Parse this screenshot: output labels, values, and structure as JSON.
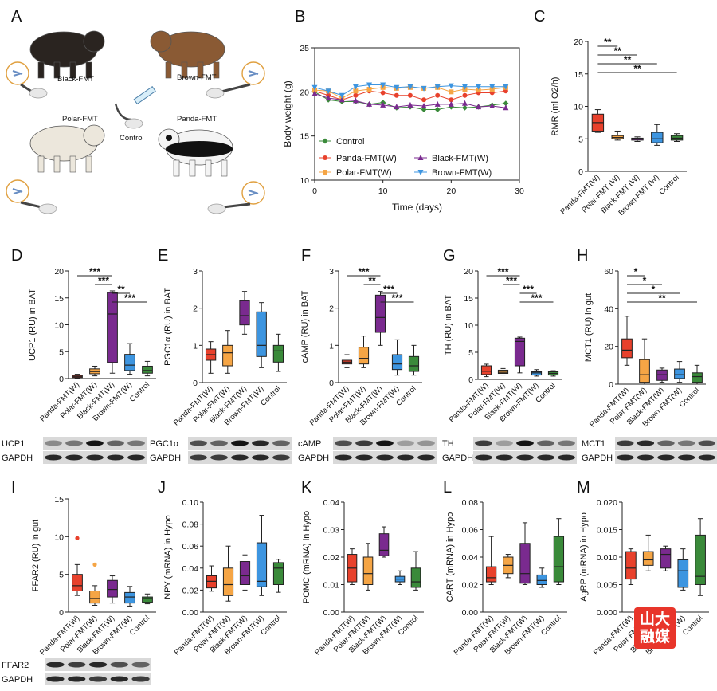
{
  "panel_letters": [
    "A",
    "B",
    "C",
    "D",
    "E",
    "F",
    "G",
    "H",
    "I",
    "J",
    "K",
    "L",
    "M"
  ],
  "panel_a": {
    "labels": [
      "Black-FMT",
      "Brown-FMT",
      "Polar-FMT",
      "Panda-FMT",
      "Control"
    ],
    "animals": [
      "black-bear",
      "brown-bear",
      "polar-bear",
      "panda"
    ]
  },
  "colors": {
    "panda": "#e8412c",
    "polar": "#f5a545",
    "black": "#7a2a8f",
    "brown": "#3d95e0",
    "control": "#3a8a3a"
  },
  "categories": [
    "Panda-FMT(W)",
    "Polar-FMT (W)",
    "Black-FMT (W)",
    "Brown-FMT (W)",
    "Control"
  ],
  "categories_alt": [
    "Panda-FMT(W)",
    "Polar-FMT(W)",
    "Black-FMT(W)",
    "Brown-FMT(W)",
    "Control"
  ],
  "blots": {
    "D": [
      "UCP1",
      "GAPDH"
    ],
    "E": [
      "PGC1α",
      "GAPDH"
    ],
    "F": [
      "cAMP",
      "GAPDH"
    ],
    "G": [
      "TH",
      "GAPDH"
    ],
    "H": [
      "MCT1",
      "GAPDH"
    ],
    "I": [
      "FFAR2",
      "GAPDH"
    ]
  },
  "badge_text": "山大融媒",
  "chart_data": [
    {
      "panel": "B",
      "type": "line",
      "xlabel": "Time (days)",
      "ylabel": "Body weight (g)",
      "xlim": [
        0,
        30
      ],
      "ylim": [
        10,
        25
      ],
      "xticks": [
        "0",
        "10",
        "20",
        "30"
      ],
      "yticks": [
        "10",
        "15",
        "20",
        "25"
      ],
      "x": [
        0,
        2,
        4,
        6,
        8,
        10,
        12,
        14,
        16,
        18,
        20,
        22,
        24,
        26,
        28
      ],
      "legend_position": "bottom-left",
      "series": [
        {
          "name": "Control",
          "color": "#3a8a3a",
          "marker": "diamond",
          "values": [
            20,
            19.1,
            18.9,
            18.9,
            18.6,
            18.8,
            18.2,
            18.3,
            18,
            18,
            18.3,
            18.2,
            18.3,
            18.5,
            18.7
          ]
        },
        {
          "name": "Panda-FMT(W)",
          "color": "#e8412c",
          "marker": "circle",
          "values": [
            20.1,
            19.6,
            19.1,
            19.6,
            20.1,
            19.9,
            19.6,
            19.6,
            19.1,
            19.6,
            19.1,
            19.6,
            19.9,
            19.9,
            20.1
          ]
        },
        {
          "name": "Polar-FMT(W)",
          "color": "#f5a545",
          "marker": "square",
          "values": [
            20.2,
            20.1,
            19.3,
            20.1,
            20.3,
            20.5,
            20.4,
            20.5,
            20.4,
            20.5,
            20,
            20.3,
            20.2,
            20.3,
            20.5
          ]
        },
        {
          "name": "Black-FMT(W)",
          "color": "#7a2a8f",
          "marker": "triangle-up",
          "values": [
            19.8,
            19.3,
            19.1,
            19,
            18.6,
            18.5,
            18.3,
            18.5,
            18.4,
            18.6,
            18.6,
            18.7,
            18.3,
            18.4,
            18.2
          ]
        },
        {
          "name": "Brown-FMT(W)",
          "color": "#3d95e0",
          "marker": "triangle-down",
          "values": [
            20.5,
            20.1,
            19.6,
            20.6,
            20.8,
            20.8,
            20.5,
            20.6,
            20.4,
            20.6,
            20.7,
            20.6,
            20.6,
            20.6,
            20.6
          ]
        }
      ]
    },
    {
      "panel": "C",
      "type": "box",
      "ylabel": "RMR (ml O2/h)",
      "ylim": [
        0,
        20
      ],
      "yticks": [
        "0",
        "5",
        "10",
        "15",
        "20"
      ],
      "categories": [
        "Panda-FMT(W)",
        "Polar-FMT (W)",
        "Black-FMT (W)",
        "Brown-FMT (W)",
        "Control"
      ],
      "boxes": [
        [
          6,
          6.2,
          7.5,
          8.8,
          9.5
        ],
        [
          4.8,
          5,
          5.2,
          5.5,
          6.2
        ],
        [
          4.6,
          4.8,
          5,
          5.1,
          5.3
        ],
        [
          4,
          4.4,
          5,
          6,
          7.2
        ],
        [
          4.6,
          4.8,
          5.1,
          5.5,
          5.8
        ]
      ],
      "outliers": [
        [],
        [],
        [],
        [],
        []
      ],
      "significance": [
        {
          "from": 0,
          "to": 1,
          "label": "**"
        },
        {
          "from": 0,
          "to": 2,
          "label": "**"
        },
        {
          "from": 0,
          "to": 3,
          "label": "**"
        },
        {
          "from": 0,
          "to": 4,
          "label": "**"
        }
      ]
    },
    {
      "panel": "D",
      "type": "box",
      "ylabel": "UCP1 (RU) in BAT",
      "ylim": [
        0,
        20
      ],
      "yticks": [
        "0",
        "5",
        "10",
        "15",
        "20"
      ],
      "categories": [
        "Panda-FMT(W)",
        "Polar-FMT(W)",
        "Black-FMT(W)",
        "Brown-FMT(W)",
        "Control"
      ],
      "boxes": [
        [
          0.1,
          0.2,
          0.4,
          0.6,
          0.8
        ],
        [
          0.5,
          0.9,
          1.3,
          1.8,
          2.3
        ],
        [
          1,
          3,
          12,
          16,
          16.3
        ],
        [
          0.8,
          1.5,
          2.5,
          4.5,
          6.5
        ],
        [
          0.5,
          1,
          1.5,
          2.3,
          3.2
        ]
      ],
      "outliers": [
        [],
        [],
        [],
        [],
        []
      ],
      "significance": [
        {
          "from": 0,
          "to": 2,
          "label": "***"
        },
        {
          "from": 1,
          "to": 2,
          "label": "***"
        },
        {
          "from": 2,
          "to": 3,
          "label": "**"
        },
        {
          "from": 2,
          "to": 4,
          "label": "***"
        }
      ]
    },
    {
      "panel": "E",
      "type": "box",
      "ylabel": "PGC1α (RU) in BAT",
      "ylim": [
        0,
        3
      ],
      "yticks": [
        "0",
        "1",
        "2",
        "3"
      ],
      "categories": [
        "Panda-FMT(W)",
        "Polar-FMT(W)",
        "Black-FMT(W)",
        "Brown-FMT(W)",
        "Control"
      ],
      "boxes": [
        [
          0.25,
          0.6,
          0.75,
          0.9,
          1.1
        ],
        [
          0.25,
          0.45,
          0.8,
          1,
          1.4
        ],
        [
          1.3,
          1.55,
          1.8,
          2.2,
          2.45
        ],
        [
          0.4,
          0.7,
          1,
          1.9,
          2.15
        ],
        [
          0.3,
          0.55,
          0.85,
          1,
          1.3
        ]
      ],
      "outliers": [
        [],
        [],
        [],
        [],
        []
      ],
      "significance": []
    },
    {
      "panel": "F",
      "type": "box",
      "ylabel": "cAMP (RU) in BAT",
      "ylim": [
        0,
        3
      ],
      "yticks": [
        "0",
        "1",
        "2",
        "3"
      ],
      "categories": [
        "Panda-FMT(W)",
        "Polar-FMT(W)",
        "Black-FMT(W)",
        "Brown-FMT(W)",
        "Control"
      ],
      "boxes": [
        [
          0.4,
          0.5,
          0.55,
          0.6,
          0.75
        ],
        [
          0.4,
          0.5,
          0.65,
          0.95,
          1.25
        ],
        [
          1,
          1.35,
          1.75,
          2.35,
          2.45
        ],
        [
          0.2,
          0.35,
          0.5,
          0.75,
          1.15
        ],
        [
          0.2,
          0.3,
          0.45,
          0.7,
          1
        ]
      ],
      "outliers": [
        [],
        [],
        [],
        [],
        []
      ],
      "significance": [
        {
          "from": 0,
          "to": 2,
          "label": "***"
        },
        {
          "from": 1,
          "to": 2,
          "label": "**"
        },
        {
          "from": 2,
          "to": 3,
          "label": "***"
        },
        {
          "from": 2,
          "to": 4,
          "label": "***"
        }
      ]
    },
    {
      "panel": "G",
      "type": "box",
      "ylabel": "TH (RU) in BAT",
      "ylim": [
        0,
        20
      ],
      "yticks": [
        "0",
        "5",
        "10",
        "15",
        "20"
      ],
      "categories": [
        "Panda-FMT(W)",
        "Polar-FMT(W)",
        "Black-FMT(W)",
        "Brown-FMT(W)",
        "Control"
      ],
      "boxes": [
        [
          0.5,
          0.9,
          1.5,
          2.5,
          2.8
        ],
        [
          0.8,
          1.1,
          1.3,
          1.7,
          2
        ],
        [
          1.2,
          2.5,
          7,
          7.6,
          7.8
        ],
        [
          0.6,
          0.8,
          1.2,
          1.4,
          1.8
        ],
        [
          0.6,
          0.8,
          1.1,
          1.4,
          1.6
        ]
      ],
      "outliers": [
        [],
        [],
        [],
        [],
        []
      ],
      "significance": [
        {
          "from": 0,
          "to": 2,
          "label": "***"
        },
        {
          "from": 1,
          "to": 2,
          "label": "***"
        },
        {
          "from": 2,
          "to": 3,
          "label": "***"
        },
        {
          "from": 2,
          "to": 4,
          "label": "***"
        }
      ]
    },
    {
      "panel": "H",
      "type": "box",
      "ylabel": "MCT1 (RU) in gut",
      "ylim": [
        0,
        60
      ],
      "yticks": [
        "0",
        "20",
        "40",
        "60"
      ],
      "categories": [
        "Panda-FMT(W)",
        "Polar-FMT(W)",
        "Black-FMT(W)",
        "Brown-FMT(W)",
        "Control"
      ],
      "boxes": [
        [
          10,
          14,
          18,
          24,
          36
        ],
        [
          0,
          1,
          5,
          13,
          24
        ],
        [
          1,
          2,
          5,
          7.5,
          8.5
        ],
        [
          1,
          3,
          5,
          8,
          12
        ],
        [
          0,
          1,
          4,
          6,
          10
        ]
      ],
      "outliers": [
        [],
        [],
        [],
        [],
        []
      ],
      "significance": [
        {
          "from": 0,
          "to": 1,
          "label": "*"
        },
        {
          "from": 0,
          "to": 2,
          "label": "*"
        },
        {
          "from": 0,
          "to": 3,
          "label": "*"
        },
        {
          "from": 0,
          "to": 4,
          "label": "**"
        }
      ]
    },
    {
      "panel": "I",
      "type": "box",
      "ylabel": "FFAR2 (RU) in gut",
      "ylim": [
        0,
        15
      ],
      "yticks": [
        "0",
        "5",
        "10",
        "15"
      ],
      "categories": [
        "Panda-FMT(W)",
        "Polar-FMT(W)",
        "Black-FMT(W)",
        "Brown-FMT(W)",
        "Control"
      ],
      "boxes": [
        [
          2.2,
          2.8,
          3.5,
          5,
          6.3
        ],
        [
          0.9,
          1.2,
          1.8,
          2.8,
          3.5
        ],
        [
          1.2,
          2,
          3,
          4.2,
          4.8
        ],
        [
          0.8,
          1.2,
          2,
          2.6,
          3.4
        ],
        [
          1.1,
          1.3,
          1.8,
          2,
          2.4
        ]
      ],
      "outliers": [
        [
          9.8
        ],
        [
          6.3
        ],
        [],
        [],
        []
      ],
      "significance": []
    },
    {
      "panel": "J",
      "type": "box",
      "ylabel": "NPY (mRNA) in Hypo",
      "ylim": [
        0,
        0.1
      ],
      "yticks": [
        "0.00",
        "0.02",
        "0.04",
        "0.06",
        "0.08",
        "0.10"
      ],
      "categories": [
        "Panda-FMT(W)",
        "Polar-FMT(W)",
        "Black-FMT(W)",
        "Brown-FMT(W)",
        "Control"
      ],
      "boxes": [
        [
          0.019,
          0.022,
          0.028,
          0.033,
          0.042
        ],
        [
          0.01,
          0.015,
          0.025,
          0.04,
          0.06
        ],
        [
          0.02,
          0.025,
          0.033,
          0.046,
          0.052
        ],
        [
          0.015,
          0.023,
          0.028,
          0.063,
          0.088
        ],
        [
          0.018,
          0.025,
          0.04,
          0.045,
          0.048
        ]
      ],
      "outliers": [
        [],
        [],
        [],
        [],
        []
      ],
      "significance": []
    },
    {
      "panel": "K",
      "type": "box",
      "ylabel": "POMC (mRNA) in Hypo",
      "ylim": [
        0,
        0.04
      ],
      "yticks": [
        "0.00",
        "0.01",
        "0.02",
        "0.03",
        "0.04"
      ],
      "categories": [
        "Panda-FMT(W)",
        "Polar-FMT(W)",
        "Black-FMT(W)",
        "Brown-FMT(W)",
        "Control"
      ],
      "boxes": [
        [
          0.01,
          0.011,
          0.016,
          0.021,
          0.023
        ],
        [
          0.008,
          0.01,
          0.014,
          0.02,
          0.025
        ],
        [
          0.02,
          0.0205,
          0.0225,
          0.0285,
          0.031
        ],
        [
          0.01,
          0.011,
          0.012,
          0.013,
          0.015
        ],
        [
          0.008,
          0.009,
          0.011,
          0.016,
          0.022
        ]
      ],
      "outliers": [
        [],
        [],
        [],
        [],
        []
      ],
      "significance": []
    },
    {
      "panel": "L",
      "type": "box",
      "ylabel": "CART (mRNA) in Hypo",
      "ylim": [
        0,
        0.08
      ],
      "yticks": [
        "0.00",
        "0.02",
        "0.04",
        "0.06",
        "0.08"
      ],
      "categories": [
        "Panda-FMT(W)",
        "Polar-FMT(W)",
        "Black-FMT(W)",
        "Brown-FMT(W)",
        "Control"
      ],
      "boxes": [
        [
          0.02,
          0.022,
          0.025,
          0.033,
          0.055
        ],
        [
          0.025,
          0.028,
          0.034,
          0.04,
          0.042
        ],
        [
          0.02,
          0.021,
          0.028,
          0.05,
          0.065
        ],
        [
          0.018,
          0.02,
          0.023,
          0.027,
          0.032
        ],
        [
          0.02,
          0.022,
          0.033,
          0.055,
          0.068
        ]
      ],
      "outliers": [
        [],
        [],
        [],
        [],
        []
      ],
      "significance": []
    },
    {
      "panel": "M",
      "type": "box",
      "ylabel": "AgRP (mRNA) in Hypo",
      "ylim": [
        0,
        0.02
      ],
      "yticks": [
        "0.000",
        "0.005",
        "0.010",
        "0.015",
        "0.020"
      ],
      "categories": [
        "Panda-FMT(W)",
        "Polar-FMT(W)",
        "Black-FMT(W)",
        "Brown-FMT(W)",
        "Control"
      ],
      "boxes": [
        [
          0.005,
          0.006,
          0.008,
          0.011,
          0.0115
        ],
        [
          0.0075,
          0.0085,
          0.0095,
          0.011,
          0.014
        ],
        [
          0.0075,
          0.008,
          0.0105,
          0.0115,
          0.012
        ],
        [
          0.004,
          0.0045,
          0.0075,
          0.0095,
          0.0115
        ],
        [
          0.003,
          0.005,
          0.0065,
          0.014,
          0.017
        ]
      ],
      "outliers": [
        [],
        [],
        [],
        [],
        []
      ],
      "significance": []
    }
  ]
}
